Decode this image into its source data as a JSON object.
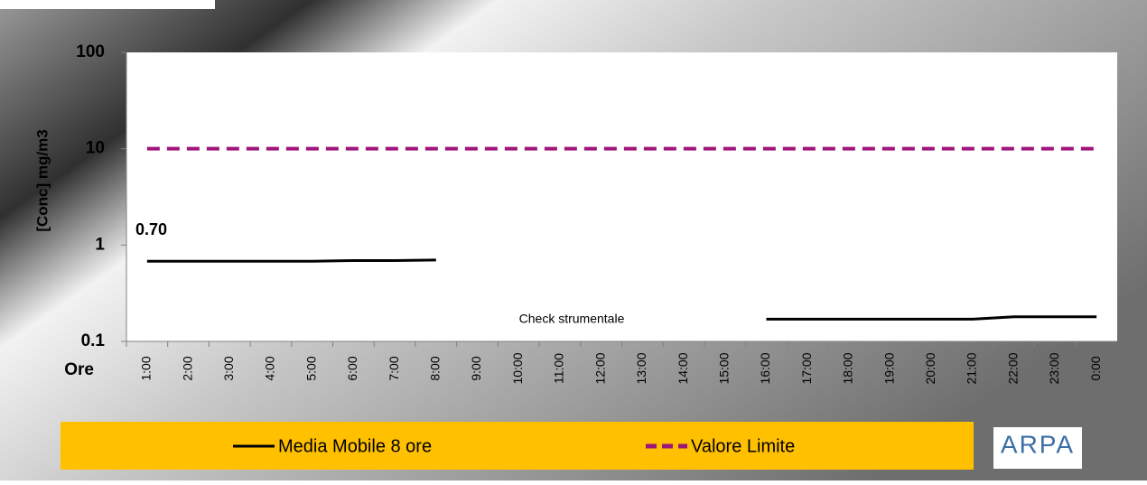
{
  "chart_data": {
    "type": "line",
    "y_label": "[Conc] mg/m3",
    "x_label": "Ore",
    "log_y": true,
    "ylim": [
      0.1,
      100
    ],
    "yticks": [
      0.1,
      1,
      10,
      100
    ],
    "categories": [
      "1:00",
      "2:00",
      "3:00",
      "4:00",
      "5:00",
      "6:00",
      "7:00",
      "8:00",
      "9:00",
      "10:00",
      "11:00",
      "12:00",
      "13:00",
      "14:00",
      "15:00",
      "16:00",
      "17:00",
      "18:00",
      "19:00",
      "20:00",
      "21:00",
      "22:00",
      "23:00",
      "0:00"
    ],
    "series": [
      {
        "name": "Media Mobile 8 ore",
        "color": "#000000",
        "dash": false,
        "values": [
          0.68,
          0.68,
          0.68,
          0.68,
          0.68,
          0.69,
          0.69,
          0.7,
          null,
          null,
          null,
          null,
          null,
          null,
          null,
          0.17,
          0.17,
          0.17,
          0.17,
          0.17,
          0.17,
          0.18,
          0.18,
          0.18
        ]
      },
      {
        "name": "Valore Limite",
        "color": "#a0157a",
        "dash": true,
        "values": [
          10,
          10,
          10,
          10,
          10,
          10,
          10,
          10,
          10,
          10,
          10,
          10,
          10,
          10,
          10,
          10,
          10,
          10,
          10,
          10,
          10,
          10,
          10,
          10
        ]
      }
    ],
    "annotations": [
      "0.70",
      "Check strumentale"
    ],
    "logo": "ARPA",
    "legend_position": "bottom"
  }
}
